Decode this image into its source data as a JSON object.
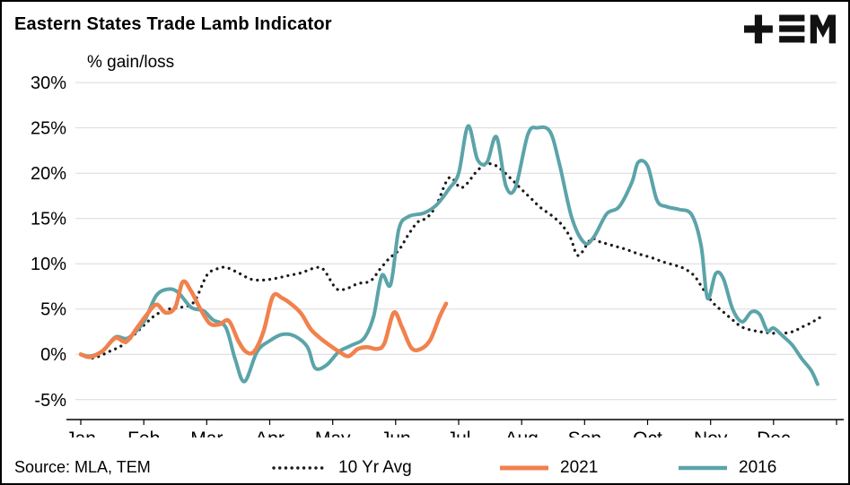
{
  "header": {
    "title": "Eastern States Trade Lamb Indicator",
    "logo_name": "TEM"
  },
  "footer": {
    "source": "Source: MLA, TEM"
  },
  "chart_data": {
    "type": "line",
    "title": "Eastern States Trade Lamb Indicator",
    "ylabel": "% gain/loss",
    "xlabel": "",
    "grid": "horizontal",
    "legend_position": "bottom",
    "grid_color": "#d9d9d9",
    "x_axis": {
      "months": [
        "Jan",
        "Feb",
        "Mar",
        "Apr",
        "May",
        "Jun",
        "Jul",
        "Aug",
        "Sep",
        "Oct",
        "Nov",
        "Dec"
      ]
    },
    "y_axis": {
      "ticks": [
        -5,
        0,
        5,
        10,
        15,
        20,
        25,
        30
      ],
      "tick_suffix": "%",
      "ylim": [
        -7.2,
        31
      ]
    },
    "series": [
      {
        "name": "10 Yr Avg",
        "style": "dotted",
        "color": "#1a1a1a",
        "width": 3.2,
        "x": [
          0.0,
          0.2,
          0.45,
          0.7,
          1.0,
          1.2,
          1.4,
          1.6,
          1.8,
          2.0,
          2.15,
          2.3,
          2.5,
          2.7,
          2.9,
          3.1,
          3.3,
          3.5,
          3.7,
          3.85,
          4.05,
          4.2,
          4.4,
          4.6,
          4.75,
          4.9,
          5.05,
          5.2,
          5.35,
          5.5,
          5.65,
          5.85,
          6.05,
          6.3,
          6.45,
          6.6,
          6.8,
          7.0,
          7.15,
          7.3,
          7.5,
          7.65,
          7.78,
          7.9,
          8.1,
          8.25,
          8.45,
          8.65,
          8.85,
          9.05,
          9.25,
          9.45,
          9.6,
          9.75,
          9.9,
          10.05,
          10.2,
          10.35,
          10.5,
          10.7,
          10.9,
          11.1,
          11.3,
          11.45,
          11.6,
          11.72,
          11.82
        ],
        "values": [
          0.0,
          -0.4,
          0.3,
          1.2,
          3.2,
          4.4,
          5.0,
          5.2,
          5.8,
          8.7,
          9.4,
          9.6,
          9.0,
          8.3,
          8.2,
          8.4,
          8.7,
          9.0,
          9.5,
          9.4,
          7.3,
          7.2,
          7.8,
          8.1,
          9.4,
          10.6,
          11.5,
          13.2,
          14.6,
          15.1,
          16.5,
          19.5,
          18.4,
          20.3,
          21.0,
          20.8,
          19.6,
          18.2,
          17.2,
          16.2,
          15.2,
          14.2,
          12.8,
          10.9,
          12.7,
          12.4,
          12.0,
          11.6,
          11.1,
          10.7,
          10.2,
          9.8,
          9.4,
          8.6,
          7.0,
          5.6,
          4.7,
          3.8,
          3.0,
          2.6,
          2.4,
          2.3,
          2.5,
          3.0,
          3.5,
          4.0,
          4.3
        ]
      },
      {
        "name": "2021",
        "style": "solid",
        "color": "#f1814d",
        "width": 4.5,
        "x": [
          0.0,
          0.15,
          0.35,
          0.55,
          0.72,
          0.9,
          1.05,
          1.2,
          1.35,
          1.5,
          1.62,
          1.75,
          1.9,
          2.05,
          2.2,
          2.35,
          2.5,
          2.62,
          2.75,
          2.9,
          3.05,
          3.2,
          3.35,
          3.5,
          3.65,
          3.8,
          3.95,
          4.1,
          4.25,
          4.4,
          4.55,
          4.7,
          4.82,
          4.97,
          5.1,
          5.25,
          5.4,
          5.55,
          5.7,
          5.8
        ],
        "values": [
          0.0,
          -0.3,
          0.4,
          1.8,
          1.4,
          3.0,
          4.4,
          5.5,
          4.6,
          5.2,
          8.0,
          7.0,
          5.0,
          3.4,
          3.3,
          3.7,
          1.5,
          0.3,
          0.3,
          2.5,
          6.4,
          6.2,
          5.5,
          4.5,
          2.8,
          1.8,
          1.0,
          0.3,
          -0.2,
          0.6,
          0.8,
          0.6,
          1.2,
          4.6,
          3.0,
          0.7,
          0.6,
          1.6,
          4.2,
          5.6
        ]
      },
      {
        "name": "2016",
        "style": "solid",
        "color": "#5ba4a9",
        "width": 4.0,
        "x": [
          0.0,
          0.15,
          0.35,
          0.55,
          0.75,
          1.0,
          1.2,
          1.4,
          1.55,
          1.75,
          1.95,
          2.1,
          2.3,
          2.45,
          2.6,
          2.8,
          3.0,
          3.2,
          3.4,
          3.6,
          3.72,
          3.9,
          4.1,
          4.3,
          4.5,
          4.65,
          4.78,
          4.92,
          5.05,
          5.2,
          5.45,
          5.65,
          5.85,
          6.0,
          6.15,
          6.3,
          6.45,
          6.6,
          6.75,
          6.9,
          7.1,
          7.25,
          7.45,
          7.6,
          7.8,
          8.0,
          8.15,
          8.35,
          8.55,
          8.75,
          8.85,
          9.0,
          9.15,
          9.3,
          9.5,
          9.7,
          9.85,
          9.95,
          10.08,
          10.2,
          10.35,
          10.5,
          10.65,
          10.78,
          10.9,
          11.0,
          11.15,
          11.3,
          11.45,
          11.6,
          11.7
        ],
        "values": [
          0.0,
          -0.2,
          0.4,
          1.9,
          1.8,
          3.6,
          6.5,
          7.2,
          6.8,
          5.2,
          4.8,
          3.8,
          3.0,
          -0.5,
          -3.0,
          0.3,
          1.5,
          2.2,
          2.0,
          0.8,
          -1.5,
          -1.2,
          0.3,
          1.0,
          1.8,
          4.2,
          8.7,
          7.7,
          13.8,
          15.2,
          15.6,
          16.5,
          18.3,
          20.0,
          25.2,
          21.5,
          21.2,
          24.0,
          18.6,
          18.4,
          24.3,
          25.0,
          24.6,
          21.0,
          15.0,
          12.3,
          13.0,
          15.5,
          16.3,
          19.0,
          21.2,
          20.8,
          17.0,
          16.3,
          16.0,
          15.4,
          12.0,
          6.2,
          8.9,
          8.4,
          5.0,
          3.6,
          4.7,
          4.4,
          2.6,
          2.9,
          2.0,
          1.0,
          -0.5,
          -1.8,
          -3.3
        ]
      }
    ]
  }
}
